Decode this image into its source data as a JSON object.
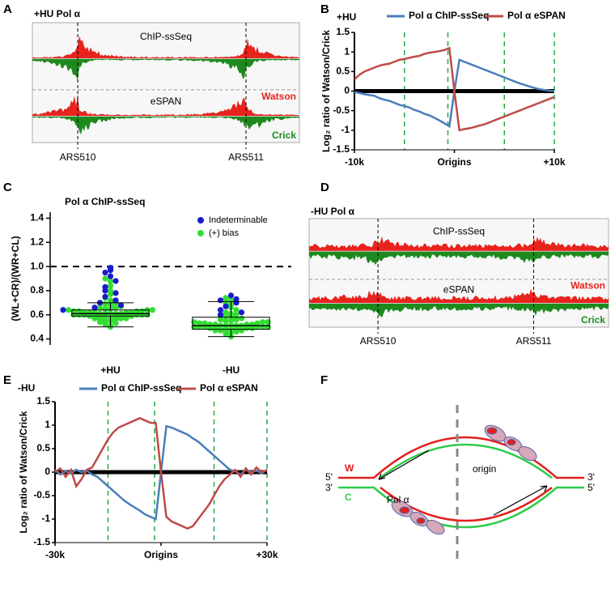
{
  "panel_labels": [
    "A",
    "B",
    "C",
    "D",
    "E",
    "F"
  ],
  "tracks": [
    {
      "title": "+HU Pol α",
      "top_label": "ChIP-ssSeq",
      "mid_label": "eSPAN",
      "watson": "Watson",
      "crick": "Crick",
      "loci": [
        "ARS510",
        "ARS511"
      ]
    },
    {
      "title": "-HU Pol α",
      "top_label": "ChIP-ssSeq",
      "mid_label": "eSPAN",
      "watson": "Watson",
      "crick": "Crick",
      "loci": [
        "ARS510",
        "ARS511"
      ]
    }
  ],
  "chart_data": [
    {
      "type": "line",
      "title": "+HU",
      "y_label": "Log₂ ratio of Watson/Crick",
      "xlim": [
        -10000,
        10000
      ],
      "xticks": [
        {
          "value": -10000,
          "label": "-10k"
        },
        {
          "value": 0,
          "label": "Origins"
        },
        {
          "value": 10000,
          "label": "+10k"
        }
      ],
      "ylim": [
        -1.5,
        1.5
      ],
      "yticks": [
        -1.5,
        -1,
        -0.5,
        0,
        0.5,
        1,
        1.5
      ],
      "x": [
        -10000,
        -9500,
        -9000,
        -8500,
        -8000,
        -7500,
        -7000,
        -6500,
        -6000,
        -5500,
        -5000,
        -4500,
        -4000,
        -3500,
        -3000,
        -2500,
        -2000,
        -1500,
        -1000,
        -500,
        0,
        500,
        1000,
        1500,
        2000,
        2500,
        3000,
        3500,
        4000,
        4500,
        5000,
        5500,
        6000,
        6500,
        7000,
        7500,
        8000,
        8500,
        9000,
        9500,
        10000
      ],
      "series": [
        {
          "name": "Pol α ChIP-ssSeq",
          "color": "#4a7ebb",
          "values": [
            -0.02,
            -0.05,
            -0.08,
            -0.1,
            -0.12,
            -0.18,
            -0.22,
            -0.25,
            -0.3,
            -0.35,
            -0.38,
            -0.42,
            -0.48,
            -0.52,
            -0.58,
            -0.62,
            -0.68,
            -0.75,
            -0.82,
            -0.9,
            0,
            0.8,
            0.75,
            0.7,
            0.65,
            0.6,
            0.55,
            0.5,
            0.45,
            0.4,
            0.35,
            0.3,
            0.25,
            0.2,
            0.16,
            0.12,
            0.08,
            0.05,
            0.03,
            0.01,
            0
          ]
        },
        {
          "name": "Pol α eSPAN",
          "color": "#be4b48",
          "values": [
            0.3,
            0.42,
            0.5,
            0.55,
            0.6,
            0.65,
            0.68,
            0.7,
            0.75,
            0.8,
            0.82,
            0.85,
            0.88,
            0.9,
            0.95,
            0.98,
            1.0,
            1.02,
            1.05,
            1.1,
            0,
            -1.0,
            -0.97,
            -0.95,
            -0.92,
            -0.88,
            -0.85,
            -0.8,
            -0.75,
            -0.7,
            -0.65,
            -0.6,
            -0.55,
            -0.5,
            -0.45,
            -0.4,
            -0.35,
            -0.3,
            -0.25,
            -0.2,
            -0.15
          ]
        }
      ]
    },
    {
      "type": "beeswarm",
      "title": "Pol α ChIP-ssSeq",
      "y_label": "(WL+CR)/(WR+CL)",
      "categories": [
        "+HU",
        "-HU"
      ],
      "ylim": [
        0.35,
        1.45
      ],
      "yticks": [
        0.4,
        0.6,
        0.8,
        {
          "value": 1,
          "label": "1.0"
        },
        1.2,
        1.4
      ],
      "reference_line": 1,
      "series": [
        {
          "name": "(+) bias",
          "color": "#33dd33",
          "values": [
            [
              0.5,
              0.51,
              0.52,
              0.53,
              0.54,
              0.55,
              0.55,
              0.56,
              0.56,
              0.57,
              0.57,
              0.57,
              0.58,
              0.58,
              0.58,
              0.58,
              0.59,
              0.59,
              0.59,
              0.59,
              0.59,
              0.6,
              0.6,
              0.6,
              0.6,
              0.6,
              0.6,
              0.61,
              0.61,
              0.61,
              0.61,
              0.61,
              0.62,
              0.62,
              0.62,
              0.62,
              0.62,
              0.63,
              0.63,
              0.63,
              0.63,
              0.64,
              0.64,
              0.64,
              0.65,
              0.65,
              0.66,
              0.66,
              0.67,
              0.68,
              0.69,
              0.7,
              0.72,
              0.74,
              0.77,
              0.8,
              0.84,
              0.88,
              0.9
            ],
            [
              0.42,
              0.44,
              0.45,
              0.46,
              0.46,
              0.47,
              0.47,
              0.47,
              0.48,
              0.48,
              0.48,
              0.48,
              0.49,
              0.49,
              0.49,
              0.49,
              0.49,
              0.5,
              0.5,
              0.5,
              0.5,
              0.5,
              0.5,
              0.51,
              0.51,
              0.51,
              0.51,
              0.51,
              0.52,
              0.52,
              0.52,
              0.52,
              0.53,
              0.53,
              0.53,
              0.54,
              0.54,
              0.54,
              0.55,
              0.55,
              0.56,
              0.56,
              0.57,
              0.58,
              0.59,
              0.6,
              0.61,
              0.62,
              0.64,
              0.66,
              0.68,
              0.7,
              0.72,
              0.74
            ]
          ]
        },
        {
          "name": "Indeterminable",
          "color": "#1a1acc",
          "values": [
            [
              0.99,
              0.97,
              0.95,
              0.92,
              0.88,
              0.83,
              0.8,
              0.78,
              0.75,
              0.72,
              0.7,
              0.68,
              0.66,
              0.64
            ],
            [
              0.76,
              0.73,
              0.72,
              0.7,
              0.67,
              0.64,
              0.62,
              0.6
            ]
          ]
        }
      ],
      "boxes": [
        {
          "whislo": 0.5,
          "q1": 0.59,
          "med": 0.61,
          "q3": 0.64,
          "whishi": 0.7
        },
        {
          "whislo": 0.42,
          "q1": 0.48,
          "med": 0.51,
          "q3": 0.58,
          "whishi": 0.71
        }
      ]
    },
    {
      "type": "line",
      "title": "-HU",
      "y_label": "Log₂ ratio of Watson/Crick",
      "xlim": [
        -30000,
        30000
      ],
      "xticks": [
        {
          "value": -30000,
          "label": "-30k"
        },
        {
          "value": 0,
          "label": "Origins"
        },
        {
          "value": 30000,
          "label": "+30k"
        }
      ],
      "ylim": [
        -1.5,
        1.5
      ],
      "yticks": [
        -1.5,
        -1,
        -0.5,
        0,
        0.5,
        1,
        1.5
      ],
      "x": [
        -30000,
        -28500,
        -27000,
        -25500,
        -24000,
        -22500,
        -21000,
        -19500,
        -18000,
        -16500,
        -15000,
        -13500,
        -12000,
        -10500,
        -9000,
        -7500,
        -6000,
        -4500,
        -3000,
        -1500,
        0,
        1500,
        3000,
        4500,
        6000,
        7500,
        9000,
        10500,
        12000,
        13500,
        15000,
        16500,
        18000,
        19500,
        21000,
        22500,
        24000,
        25500,
        27000,
        28500,
        30000
      ],
      "series": [
        {
          "name": "Pol α ChIP-ssSeq",
          "color": "#4a7ebb",
          "values": [
            0.05,
            -0.05,
            0.02,
            -0.03,
            0.05,
            0,
            0.03,
            -0.05,
            -0.1,
            -0.2,
            -0.3,
            -0.4,
            -0.5,
            -0.6,
            -0.68,
            -0.75,
            -0.82,
            -0.9,
            -0.95,
            -1.0,
            0,
            0.98,
            0.95,
            0.9,
            0.85,
            0.8,
            0.72,
            0.65,
            0.55,
            0.45,
            0.35,
            0.25,
            0.15,
            0.05,
            0.02,
            -0.05,
            0.05,
            0,
            0.03,
            -0.02,
            0.05
          ]
        },
        {
          "name": "Pol α eSPAN",
          "color": "#be4b48",
          "values": [
            0,
            0.08,
            -0.1,
            0.05,
            -0.3,
            -0.15,
            0.05,
            0.1,
            0.3,
            0.5,
            0.7,
            0.85,
            0.95,
            1.0,
            1.05,
            1.1,
            1.15,
            1.1,
            1.05,
            1.05,
            0,
            -0.95,
            -1.05,
            -1.1,
            -1.15,
            -1.2,
            -1.15,
            -1.0,
            -0.85,
            -0.7,
            -0.5,
            -0.3,
            -0.15,
            -0.05,
            0.05,
            -0.1,
            0.08,
            -0.05,
            0.1,
            0,
            0.05
          ]
        }
      ]
    }
  ],
  "diagram": {
    "left_top_end": "5'",
    "left_top_strand": "W",
    "left_bottom_end": "3'",
    "left_bottom_strand": "C",
    "polymerase": "Pol α",
    "origin": "origin",
    "right_top_end": "3'",
    "right_bottom_end": "5'"
  }
}
